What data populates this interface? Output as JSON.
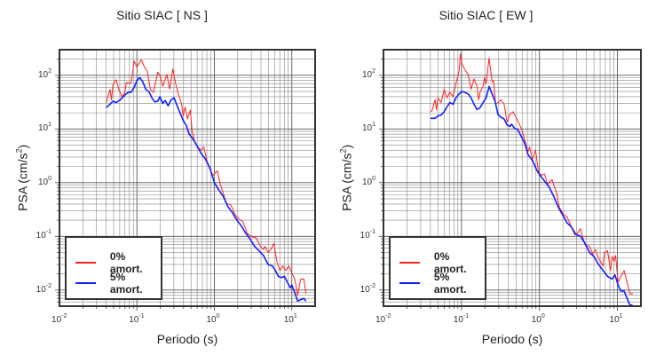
{
  "chart_data": [
    {
      "type": "line",
      "title": "Sitio SIAC [ NS ]",
      "xlabel": "Periodo (s)",
      "ylabel": "PSA (cm/s",
      "ylabel_sup": "2",
      "ylabel_end": ")",
      "xscale": "log",
      "yscale": "log",
      "xlim": [
        0.01,
        20
      ],
      "ylim": [
        0.005,
        300
      ],
      "grid": true,
      "legend_position": "bottom-left",
      "x_ticks": [
        {
          "base": "10",
          "exp": "-2",
          "value": 0.01
        },
        {
          "base": "10",
          "exp": "-1",
          "value": 0.1
        },
        {
          "base": "10",
          "exp": "0",
          "value": 1
        },
        {
          "base": "10",
          "exp": "1",
          "value": 10
        }
      ],
      "y_ticks": [
        {
          "base": "10",
          "exp": "-2",
          "value": 0.01
        },
        {
          "base": "10",
          "exp": "-1",
          "value": 0.1
        },
        {
          "base": "10",
          "exp": "0",
          "value": 1
        },
        {
          "base": "10",
          "exp": "1",
          "value": 10
        },
        {
          "base": "10",
          "exp": "2",
          "value": 100
        }
      ],
      "series": [
        {
          "name": "0% amort.",
          "color": "#ff2020",
          "width": 1,
          "x": [
            0.04,
            0.045,
            0.047,
            0.049,
            0.054,
            0.059,
            0.064,
            0.07,
            0.073,
            0.084,
            0.092,
            0.1,
            0.114,
            0.125,
            0.136,
            0.149,
            0.163,
            0.186,
            0.203,
            0.216,
            0.243,
            0.265,
            0.29,
            0.316,
            0.345,
            0.378,
            0.395,
            0.42,
            0.45,
            0.49,
            0.515,
            0.56,
            0.61,
            0.67,
            0.73,
            0.8,
            0.875,
            0.957,
            1.09,
            1.19,
            1.3,
            1.43,
            1.63,
            1.86,
            2.12,
            2.32,
            2.65,
            3.03,
            3.45,
            3.95,
            4.31,
            4.51,
            4.92,
            5.38,
            5.88,
            6.42,
            7.02,
            7.67,
            8.38,
            9.16,
            10,
            10.9,
            11.9,
            13.0,
            14.3,
            15.3
          ],
          "y": [
            31,
            55,
            35,
            67,
            83,
            52,
            40,
            48,
            73,
            71,
            184,
            143,
            196,
            143,
            118,
            55,
            48,
            115,
            91,
            62,
            104,
            55,
            131,
            71,
            43,
            29,
            17.5,
            25.6,
            15.4,
            22.6,
            9.3,
            5.6,
            4.6,
            4.05,
            4.6,
            2.6,
            1.77,
            1.37,
            1.66,
            0.94,
            0.64,
            0.41,
            0.385,
            0.25,
            0.204,
            0.191,
            0.115,
            0.098,
            0.095,
            0.065,
            0.057,
            0.065,
            0.05,
            0.057,
            0.074,
            0.034,
            0.023,
            0.028,
            0.023,
            0.028,
            0.021,
            0.016,
            0.008,
            0.016,
            0.016,
            0.0085
          ]
        },
        {
          "name": "5% amort.",
          "color": "#1020ff",
          "width": 1.6,
          "x": [
            0.04,
            0.045,
            0.049,
            0.054,
            0.061,
            0.07,
            0.077,
            0.084,
            0.092,
            0.1,
            0.109,
            0.119,
            0.13,
            0.143,
            0.156,
            0.17,
            0.186,
            0.198,
            0.216,
            0.232,
            0.253,
            0.277,
            0.303,
            0.331,
            0.361,
            0.395,
            0.431,
            0.471,
            0.538,
            0.61,
            0.67,
            0.767,
            0.875,
            1.0,
            1.14,
            1.3,
            1.49,
            1.7,
            1.94,
            2.22,
            2.53,
            2.9,
            3.31,
            3.77,
            4.31,
            4.92,
            5.62,
            6.14,
            6.71,
            7.33,
            8.01,
            8.75,
            9.57,
            10,
            10.9,
            11.9,
            13.0,
            14.3,
            15.3
          ],
          "y": [
            25,
            29,
            33,
            31,
            35,
            43,
            48,
            48,
            59,
            80,
            91,
            76,
            55,
            50,
            38,
            32,
            33,
            40,
            30,
            34,
            27,
            35,
            38,
            27,
            19.9,
            14.5,
            11.9,
            8.2,
            6.3,
            4.6,
            3.57,
            2.77,
            1.89,
            1.0,
            0.73,
            0.56,
            0.361,
            0.28,
            0.204,
            0.158,
            0.115,
            0.089,
            0.065,
            0.054,
            0.044,
            0.03,
            0.028,
            0.023,
            0.018,
            0.017,
            0.018,
            0.014,
            0.011,
            0.0124,
            0.009,
            0.0062,
            0.0066,
            0.007,
            0.0062
          ]
        }
      ]
    },
    {
      "type": "line",
      "title": "Sitio SIAC [ EW ]",
      "xlabel": "Periodo (s)",
      "ylabel": "PSA (cm/s",
      "ylabel_sup": "2",
      "ylabel_end": ")",
      "xscale": "log",
      "yscale": "log",
      "xlim": [
        0.01,
        20
      ],
      "ylim": [
        0.005,
        300
      ],
      "grid": true,
      "legend_position": "bottom-left",
      "x_ticks": [
        {
          "base": "10",
          "exp": "-2",
          "value": 0.01
        },
        {
          "base": "10",
          "exp": "-1",
          "value": 0.1
        },
        {
          "base": "10",
          "exp": "0",
          "value": 1
        },
        {
          "base": "10",
          "exp": "1",
          "value": 10
        }
      ],
      "y_ticks": [
        {
          "base": "10",
          "exp": "-2",
          "value": 0.01
        },
        {
          "base": "10",
          "exp": "-1",
          "value": 0.1
        },
        {
          "base": "10",
          "exp": "0",
          "value": 1
        },
        {
          "base": "10",
          "exp": "1",
          "value": 10
        },
        {
          "base": "10",
          "exp": "2",
          "value": 100
        }
      ],
      "series": [
        {
          "name": "0% amort.",
          "color": "#ff2020",
          "width": 1,
          "x": [
            0.04,
            0.042,
            0.046,
            0.048,
            0.05,
            0.055,
            0.06,
            0.065,
            0.071,
            0.078,
            0.085,
            0.093,
            0.097,
            0.102,
            0.111,
            0.122,
            0.133,
            0.145,
            0.158,
            0.166,
            0.173,
            0.189,
            0.198,
            0.207,
            0.226,
            0.247,
            0.258,
            0.274,
            0.294,
            0.322,
            0.352,
            0.384,
            0.42,
            0.459,
            0.5,
            0.548,
            0.598,
            0.654,
            0.714,
            0.747,
            0.816,
            0.891,
            0.974,
            1.06,
            1.16,
            1.27,
            1.45,
            1.66,
            1.81,
            2.07,
            2.26,
            2.58,
            2.82,
            3.08,
            3.36,
            3.84,
            4.39,
            4.8,
            5.24,
            5.72,
            6.54,
            6.83,
            7.47,
            8.16,
            8.53,
            9.07,
            9.48,
            10.2,
            11.1,
            12.2,
            13.3,
            14.5,
            15.8
          ],
          "y": [
            21,
            22,
            35,
            22.6,
            38,
            31,
            55,
            38,
            48,
            40,
            71,
            118,
            253,
            162,
            126,
            104,
            55,
            86,
            62,
            35,
            48,
            62,
            91,
            71,
            209,
            76,
            80,
            29,
            31,
            35,
            29,
            13.6,
            18.7,
            21,
            16.4,
            12.7,
            9.3,
            5.9,
            3.8,
            4.6,
            2.77,
            4.05,
            1.56,
            1.37,
            1.46,
            0.94,
            1.14,
            0.64,
            0.34,
            0.25,
            0.232,
            0.148,
            0.108,
            0.115,
            0.139,
            0.069,
            0.065,
            0.047,
            0.057,
            0.039,
            0.028,
            0.05,
            0.054,
            0.023,
            0.042,
            0.034,
            0.044,
            0.014,
            0.018,
            0.023,
            0.014,
            0.0085,
            0.0085
          ]
        },
        {
          "name": "5% amort.",
          "color": "#1020ff",
          "width": 1.6,
          "x": [
            0.04,
            0.046,
            0.05,
            0.055,
            0.06,
            0.065,
            0.071,
            0.078,
            0.085,
            0.093,
            0.102,
            0.111,
            0.122,
            0.133,
            0.145,
            0.158,
            0.173,
            0.189,
            0.207,
            0.226,
            0.247,
            0.27,
            0.294,
            0.322,
            0.352,
            0.384,
            0.42,
            0.439,
            0.48,
            0.524,
            0.573,
            0.654,
            0.714,
            0.816,
            0.932,
            1.02,
            1.16,
            1.33,
            1.52,
            1.73,
            1.98,
            2.26,
            2.58,
            2.94,
            3.36,
            3.84,
            4.39,
            5.01,
            5.72,
            6.54,
            7.47,
            8.53,
            9.31,
            10.2,
            11.1,
            12.2,
            13.3,
            14.5,
            15.6
          ],
          "y": [
            15.8,
            15.8,
            17.5,
            18.2,
            21,
            25.6,
            31,
            29,
            38,
            45,
            50,
            48,
            45,
            38,
            29,
            23,
            25,
            31,
            38,
            62,
            45,
            33,
            18.7,
            16.4,
            15.4,
            11.9,
            11.2,
            12.3,
            10.3,
            9.9,
            7.7,
            5.2,
            3.35,
            2.6,
            1.66,
            1.37,
            1.07,
            0.83,
            0.56,
            0.361,
            0.25,
            0.18,
            0.148,
            0.108,
            0.101,
            0.074,
            0.05,
            0.042,
            0.03,
            0.023,
            0.018,
            0.016,
            0.019,
            0.0124,
            0.0096,
            0.0096,
            0.007,
            0.0052,
            0.0053
          ]
        }
      ]
    }
  ]
}
